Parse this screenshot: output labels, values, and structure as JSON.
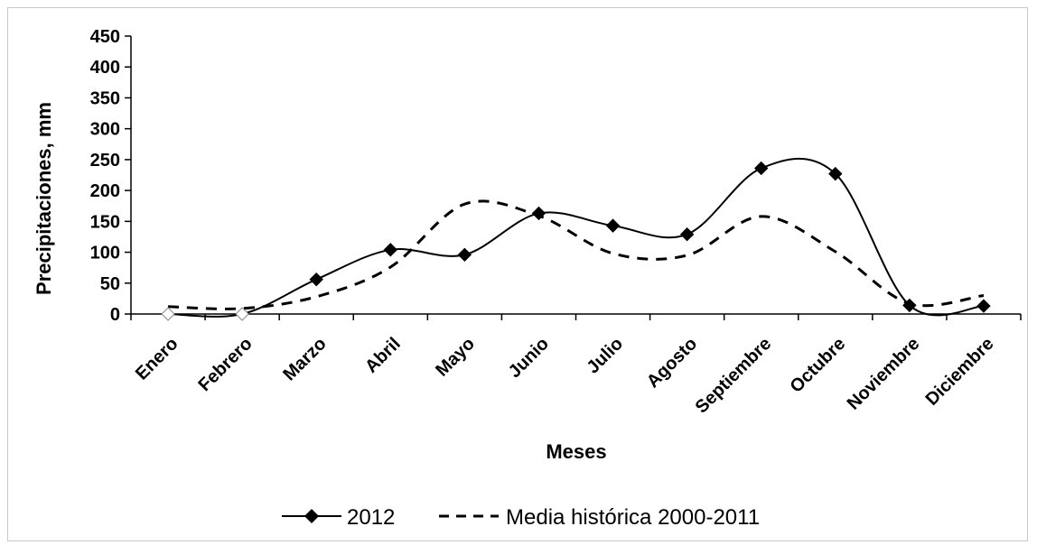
{
  "chart_data": {
    "type": "line",
    "xlabel": "Meses",
    "ylabel": "Precipitaciones,  mm",
    "ylim": [
      0,
      450
    ],
    "yticks": [
      0,
      50,
      100,
      150,
      200,
      250,
      300,
      350,
      400,
      450
    ],
    "categories": [
      "Enero",
      "Febrero",
      "Marzo",
      "Abril",
      "Mayo",
      "Junio",
      "Julio",
      "Agosto",
      "Septiembre",
      "Octubre",
      "Noviembre",
      "Diciembre"
    ],
    "grid": false,
    "legend": "bottom",
    "series": [
      {
        "name": "2012",
        "style": "solid",
        "marker": "diamond",
        "color": "#000000",
        "values": [
          0,
          0,
          56,
          104,
          96,
          163,
          143,
          129,
          236,
          227,
          14,
          13
        ],
        "hollow_markers": [
          0,
          1
        ]
      },
      {
        "name": "Media histórica 2000-2011",
        "style": "dashed",
        "marker": "none",
        "color": "#000000",
        "values": [
          12,
          9,
          28,
          76,
          178,
          159,
          98,
          95,
          158,
          101,
          17,
          30
        ]
      }
    ]
  }
}
